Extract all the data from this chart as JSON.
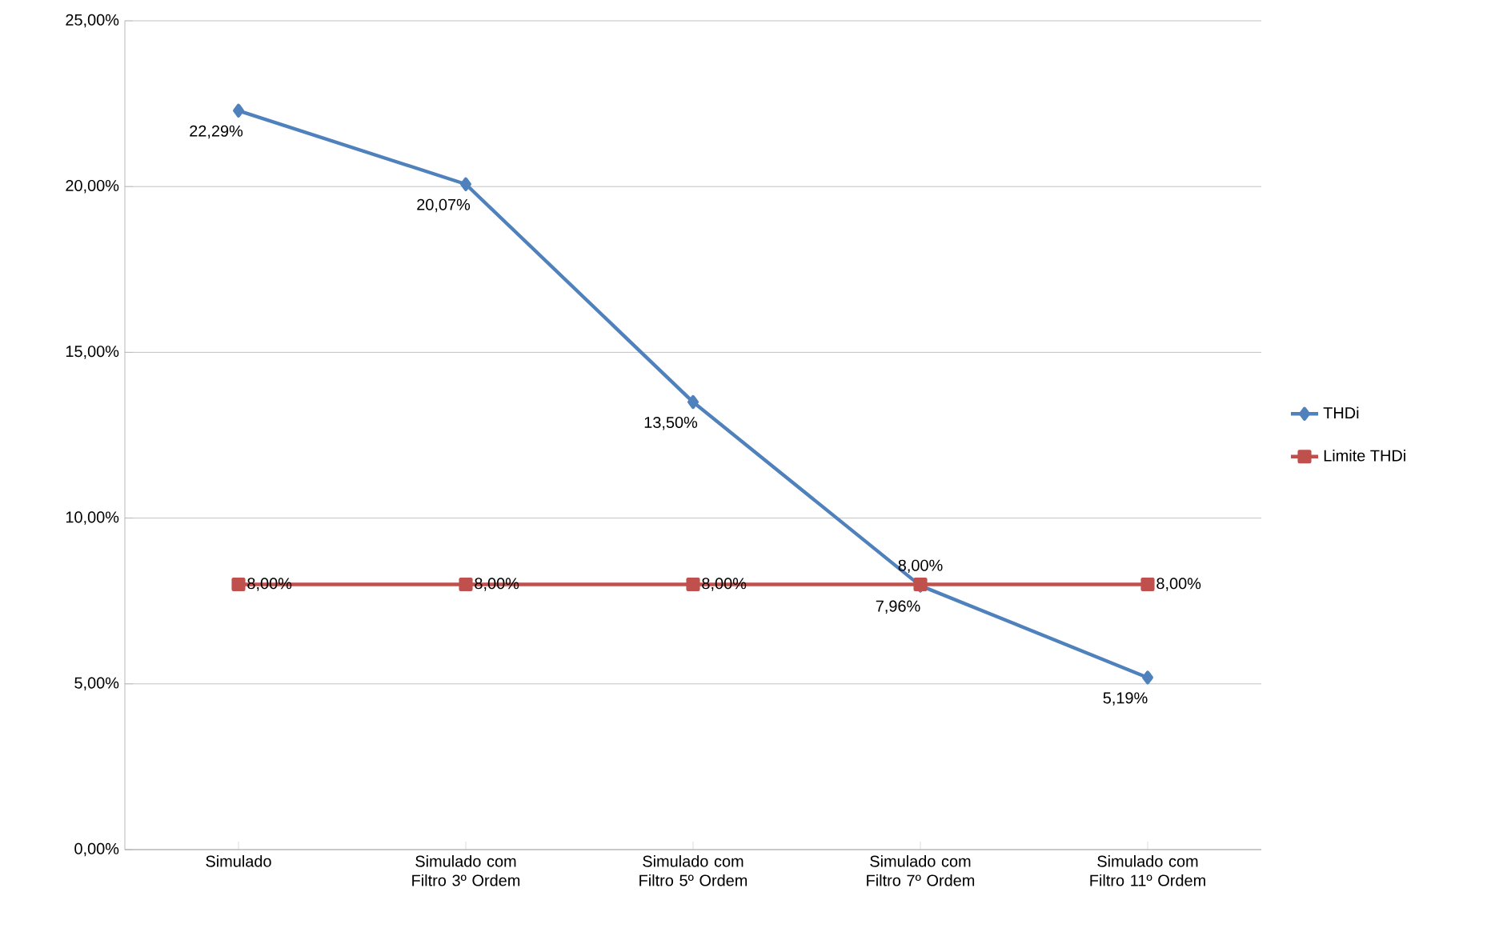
{
  "chart_data": {
    "type": "line",
    "categories": [
      "Simulado",
      "Simulado com Filtro 3º Ordem",
      "Simulado com Filtro 5º Ordem",
      "Simulado com Filtro 7º Ordem",
      "Simulado com Filtro 11º Ordem"
    ],
    "series": [
      {
        "name": "THDi",
        "color": "#4f81bd",
        "marker": "diamond",
        "values": [
          22.29,
          20.07,
          13.5,
          7.96,
          5.19
        ],
        "value_labels": [
          "22,29%",
          "20,07%",
          "13,50%",
          "7,96%",
          "5,19%"
        ]
      },
      {
        "name": "Limite THDi",
        "color": "#c0504d",
        "marker": "square",
        "values": [
          8,
          8,
          8,
          8,
          8
        ],
        "value_labels": [
          "8,00%",
          "8,00%",
          "8,00%",
          "8,00%",
          "8,00%"
        ]
      }
    ],
    "ylim": [
      0,
      25
    ],
    "yticks": [
      {
        "value": 0,
        "label": "0,00%"
      },
      {
        "value": 5,
        "label": "5,00%"
      },
      {
        "value": 10,
        "label": "10,00%"
      },
      {
        "value": 15,
        "label": "15,00%"
      },
      {
        "value": 20,
        "label": "20,00%"
      },
      {
        "value": 25,
        "label": "25,00%"
      }
    ],
    "grid": "y",
    "legend": "right",
    "line_style": "solid"
  }
}
